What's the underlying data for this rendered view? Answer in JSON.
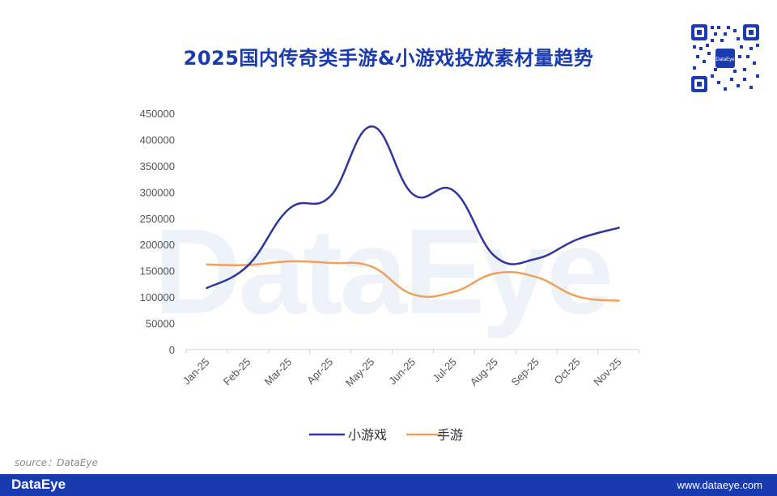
{
  "title": "2025国内传奇类手游&小游戏投放素材量趋势",
  "watermark": "DataEye",
  "source": "source：DataEye",
  "footer": {
    "brand": "DataEye",
    "url": "www.dataeye.com"
  },
  "colors": {
    "brand": "#1a3bb0",
    "series_blue": "#2f35a0",
    "series_orange": "#f0a05a"
  },
  "chart_data": {
    "type": "line",
    "title": "2025国内传奇类手游&小游戏投放素材量趋势",
    "xlabel": "",
    "ylabel": "",
    "categories": [
      "Jan-25",
      "Feb-25",
      "Mar-25",
      "Apr-25",
      "May-25",
      "Jun-25",
      "Jul-25",
      "Aug-25",
      "Sep-25",
      "Oct-25",
      "Nov-25"
    ],
    "y_ticks": [
      "450000",
      "400000",
      "350000",
      "300000",
      "250000",
      "200000",
      "150000",
      "100000",
      "50000",
      "0"
    ],
    "ylim": [
      0,
      450000
    ],
    "grid": false,
    "legend_position": "bottom",
    "smooth": true,
    "series": [
      {
        "name": "小游戏",
        "color": "#2f35a0",
        "values": [
          117000,
          160000,
          268000,
          292000,
          425000,
          296000,
          302000,
          177000,
          173000,
          210000,
          232000
        ]
      },
      {
        "name": "手游",
        "color": "#f0a05a",
        "values": [
          162000,
          161000,
          168000,
          165000,
          158000,
          105000,
          110000,
          145000,
          138000,
          101000,
          93000
        ]
      }
    ]
  }
}
